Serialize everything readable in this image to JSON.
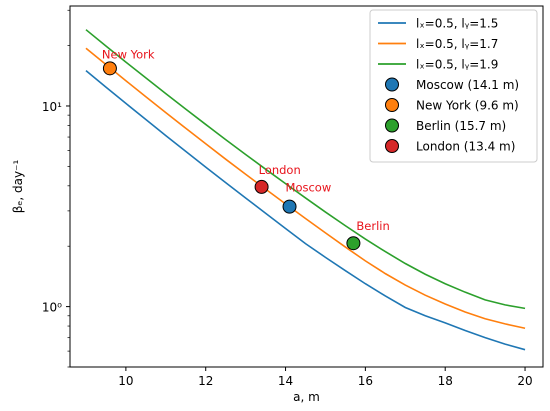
{
  "chart_data": {
    "type": "line",
    "xlabel": "a, m",
    "ylabel": "βₑ, day⁻¹",
    "xlim": [
      8.6,
      20.45
    ],
    "ylim": [
      0.5,
      31.5
    ],
    "yscale": "log",
    "xticks": [
      10,
      12,
      14,
      16,
      18,
      20
    ],
    "xtick_labels": [
      "10",
      "12",
      "14",
      "16",
      "18",
      "20"
    ],
    "yticks": [
      1,
      10
    ],
    "ytick_labels": [
      "10⁰",
      "10¹"
    ],
    "x": [
      9.0,
      9.5,
      10.0,
      10.5,
      11.0,
      11.5,
      12.0,
      12.5,
      13.0,
      13.5,
      14.0,
      14.5,
      15.0,
      15.5,
      16.0,
      16.5,
      17.0,
      17.5,
      18.0,
      18.5,
      19.0,
      19.5,
      20.0
    ],
    "series": [
      {
        "name": "lₓ=0.5, lᵧ=1.5",
        "color": "#1f77b4",
        "values": [
          15.0,
          12.42,
          10.3,
          8.56,
          7.12,
          5.94,
          4.96,
          4.15,
          3.48,
          2.92,
          2.45,
          2.06,
          1.76,
          1.51,
          1.3,
          1.13,
          0.99,
          0.9,
          0.83,
          0.76,
          0.7,
          0.65,
          0.61
        ]
      },
      {
        "name": "lₓ=0.5, lᵧ=1.7",
        "color": "#ff7f0e",
        "values": [
          19.4,
          16.1,
          13.36,
          11.12,
          9.26,
          7.74,
          6.48,
          5.43,
          4.57,
          3.85,
          3.25,
          2.75,
          2.33,
          1.98,
          1.69,
          1.46,
          1.28,
          1.14,
          1.03,
          0.94,
          0.87,
          0.82,
          0.78
        ]
      },
      {
        "name": "lₓ=0.5, lᵧ=1.9",
        "color": "#2ca02c",
        "values": [
          24.0,
          19.9,
          16.55,
          13.8,
          11.52,
          9.64,
          8.09,
          6.8,
          5.73,
          4.84,
          4.1,
          3.48,
          2.96,
          2.53,
          2.17,
          1.88,
          1.64,
          1.45,
          1.3,
          1.18,
          1.08,
          1.02,
          0.98
        ]
      }
    ],
    "points": [
      {
        "name": "Moscow (14.1 m)",
        "label": "Moscow",
        "x": 14.1,
        "y": 3.15,
        "color": "#1f77b4"
      },
      {
        "name": "New York (9.6 m)",
        "label": "New York",
        "x": 9.6,
        "y": 15.4,
        "color": "#ff7f0e"
      },
      {
        "name": "Berlin (15.7 m)",
        "label": "Berlin",
        "x": 15.7,
        "y": 2.07,
        "color": "#2ca02c"
      },
      {
        "name": "London (13.4 m)",
        "label": "London",
        "x": 13.4,
        "y": 3.95,
        "color": "#d62728"
      }
    ],
    "annotation_color": "#e8141c",
    "legend_position": "top-right",
    "grid": false
  }
}
